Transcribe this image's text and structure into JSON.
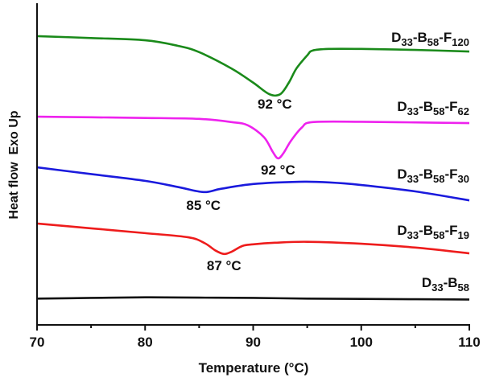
{
  "chart_data": {
    "type": "line",
    "title": "",
    "xlabel": "Temperature (°C)",
    "ylabel": "Heat flow  Exo Up",
    "xlim": [
      70,
      110
    ],
    "ylim": [
      0,
      100
    ],
    "y_units": "arbitrary (no y ticks shown)",
    "xticks": [
      70,
      80,
      90,
      100,
      110
    ],
    "xtick_labels": [
      "70",
      "80",
      "90",
      "100",
      "110"
    ],
    "minor_xticks": [
      75,
      85,
      95,
      105
    ],
    "grid": false,
    "legend": "inline labels at right end of each curve",
    "series": [
      {
        "label_parts": [
          {
            "t": "D"
          },
          {
            "t": "33",
            "sub": true
          },
          {
            "t": "-B"
          },
          {
            "t": "58",
            "sub": true
          },
          {
            "t": "-F"
          },
          {
            "t": "120",
            "sub": true
          }
        ],
        "color": "#1a8a1a",
        "x": [
          70,
          75,
          80,
          83,
          85,
          88,
          90,
          91.5,
          92.5,
          93.3,
          94,
          95,
          95.5,
          97,
          100,
          105,
          110
        ],
        "y": [
          90.0,
          89.4,
          88.7,
          87.0,
          85.0,
          79.9,
          75.5,
          71.9,
          71.9,
          75.5,
          79.9,
          84.0,
          85.5,
          86.0,
          86.0,
          85.7,
          85.2
        ],
        "annotation": {
          "text": "92 °C",
          "x": 92,
          "y": 71.9
        }
      },
      {
        "label_parts": [
          {
            "t": "D"
          },
          {
            "t": "33",
            "sub": true
          },
          {
            "t": "-B"
          },
          {
            "t": "58",
            "sub": true
          },
          {
            "t": "-F"
          },
          {
            "t": "62",
            "sub": true
          }
        ],
        "color": "#ee22ee",
        "x": [
          70,
          75,
          80,
          85,
          88,
          89.5,
          91,
          91.8,
          92.3,
          92.8,
          93.5,
          94.5,
          95.5,
          100,
          105,
          110
        ],
        "y": [
          64.9,
          64.7,
          64.5,
          64.2,
          63.2,
          62.2,
          58.5,
          54.0,
          51.9,
          53.5,
          57.4,
          61.5,
          63.2,
          63.3,
          63.1,
          62.9
        ],
        "annotation": {
          "text": "92 °C",
          "x": 92.3,
          "y": 51.9
        }
      },
      {
        "label_parts": [
          {
            "t": "D"
          },
          {
            "t": "33",
            "sub": true
          },
          {
            "t": "-B"
          },
          {
            "t": "58",
            "sub": true
          },
          {
            "t": "-F"
          },
          {
            "t": "30",
            "sub": true
          }
        ],
        "color": "#1a1add",
        "x": [
          70,
          75,
          80,
          83,
          85.4,
          87,
          90,
          94.2,
          97,
          100,
          105,
          110
        ],
        "y": [
          49.1,
          47.0,
          44.9,
          43.0,
          41.4,
          42.4,
          43.9,
          44.6,
          44.4,
          43.6,
          41.6,
          38.8
        ],
        "annotation": {
          "text": "85 °C",
          "x": 85.4,
          "y": 41.4
        }
      },
      {
        "label_parts": [
          {
            "t": "D"
          },
          {
            "t": "33",
            "sub": true
          },
          {
            "t": "-B"
          },
          {
            "t": "58",
            "sub": true
          },
          {
            "t": "-F"
          },
          {
            "t": "19",
            "sub": true
          }
        ],
        "color": "#ee1c1c",
        "x": [
          70,
          75,
          80,
          84,
          85.5,
          86.5,
          87.3,
          88,
          89,
          90,
          92,
          95,
          100,
          105,
          110
        ],
        "y": [
          31.6,
          30.1,
          28.6,
          27.3,
          25.5,
          23.2,
          22.1,
          22.8,
          24.6,
          25.1,
          25.6,
          25.9,
          25.3,
          24.1,
          22.3
        ],
        "annotation": {
          "text": "87 °C",
          "x": 87.3,
          "y": 22.1
        }
      },
      {
        "label_parts": [
          {
            "t": "D"
          },
          {
            "t": "33",
            "sub": true
          },
          {
            "t": "-B"
          },
          {
            "t": "58",
            "sub": true
          }
        ],
        "color": "#111111",
        "x": [
          70,
          75,
          80,
          85,
          90,
          95,
          100,
          105,
          110
        ],
        "y": [
          8.2,
          8.4,
          8.6,
          8.5,
          8.4,
          8.2,
          8.1,
          8.0,
          7.9
        ]
      }
    ]
  }
}
